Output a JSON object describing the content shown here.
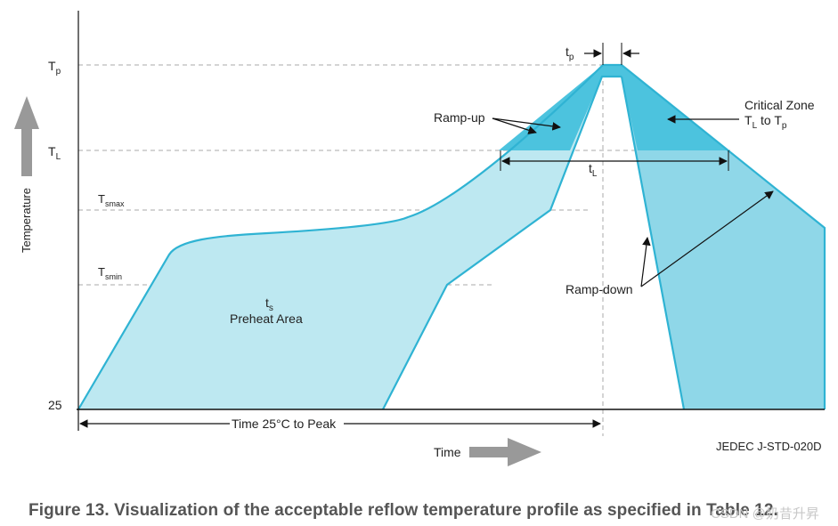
{
  "axis": {
    "y_label": "Temperature",
    "x_label": "Time",
    "ticks": {
      "tp": {
        "main": "T",
        "sub": "p"
      },
      "tl": {
        "main": "T",
        "sub": "L"
      },
      "tsmax": {
        "main": "T",
        "sub": "smax"
      },
      "tsmin": {
        "main": "T",
        "sub": "smin"
      },
      "base": "25"
    }
  },
  "labels": {
    "tp_top": {
      "main": "t",
      "sub": "p"
    },
    "tl_span": {
      "main": "t",
      "sub": "L"
    },
    "ts": {
      "main": "t",
      "sub": "s"
    },
    "preheat": "Preheat Area",
    "ramp_up": "Ramp-up",
    "ramp_down": "Ramp-down",
    "critical_zone_line1": "Critical Zone",
    "critical_zone_line2": {
      "a": "T",
      "a_sub": "L",
      "mid": " to T",
      "b_sub": "p"
    },
    "time_to_peak": "Time 25°C to Peak",
    "standard": "JEDEC J-STD-020D"
  },
  "caption": "Figure 13. Visualization of the acceptable reflow temperature profile as specified in Table 12.",
  "watermark": "CSDN @奶昔升昇",
  "colors": {
    "light_fill": "#bde8f1",
    "mid_fill": "#8fd7e8",
    "dark_fill": "#4cc3de",
    "outline": "#2fb3d3",
    "grey_arrow": "#999999",
    "dashed": "#aaaaaa"
  }
}
